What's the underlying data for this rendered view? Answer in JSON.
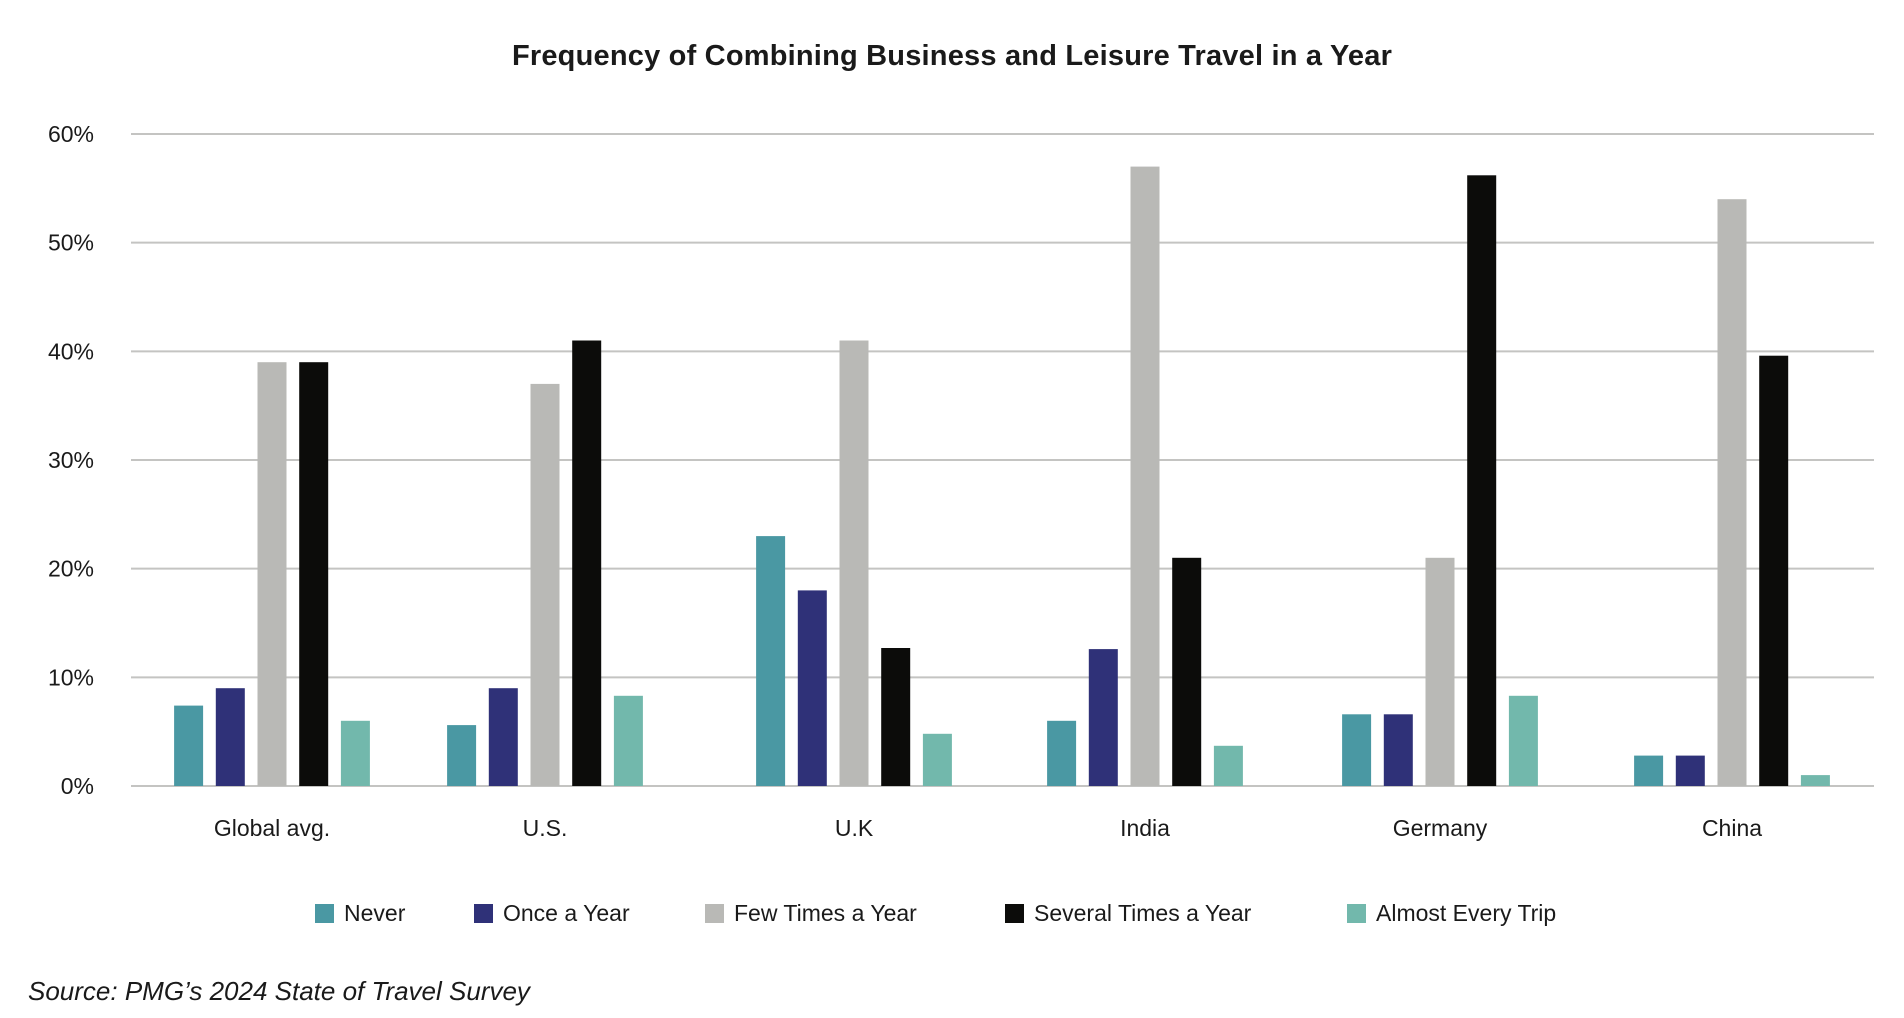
{
  "chart_data": {
    "type": "bar",
    "title": "Frequency of Combining Business and Leisure Travel in a Year",
    "xlabel": "",
    "ylabel": "",
    "ylim": [
      0,
      60
    ],
    "yticks": [
      0,
      10,
      20,
      30,
      40,
      50,
      60
    ],
    "ytick_labels": [
      "0%",
      "10%",
      "20%",
      "30%",
      "40%",
      "50%",
      "60%"
    ],
    "grid": true,
    "legend_position": "bottom-center",
    "categories": [
      "Global avg.",
      "U.S.",
      "U.K",
      "India",
      "Germany",
      "China"
    ],
    "series": [
      {
        "name": "Never",
        "color": "#4A98A3",
        "values": [
          7.4,
          5.6,
          23,
          6,
          6.6,
          2.8
        ]
      },
      {
        "name": "Once a Year",
        "color": "#2F3178",
        "values": [
          9,
          9,
          18,
          12.6,
          6.6,
          2.8
        ]
      },
      {
        "name": "Few Times a Year",
        "color": "#B9B9B6",
        "values": [
          39,
          37,
          41,
          57,
          21,
          54
        ]
      },
      {
        "name": "Several Times a Year",
        "color": "#0C0C0A",
        "values": [
          39,
          41,
          12.7,
          21,
          56.2,
          39.6
        ]
      },
      {
        "name": "Almost Every Trip",
        "color": "#72B8AC",
        "values": [
          6,
          8.3,
          4.8,
          3.7,
          8.3,
          1
        ]
      }
    ],
    "source": "Source: PMG’s 2024 State of Travel Survey"
  },
  "colors": {
    "gridline": "#C4C4C2",
    "text": "#1a1a1a"
  }
}
